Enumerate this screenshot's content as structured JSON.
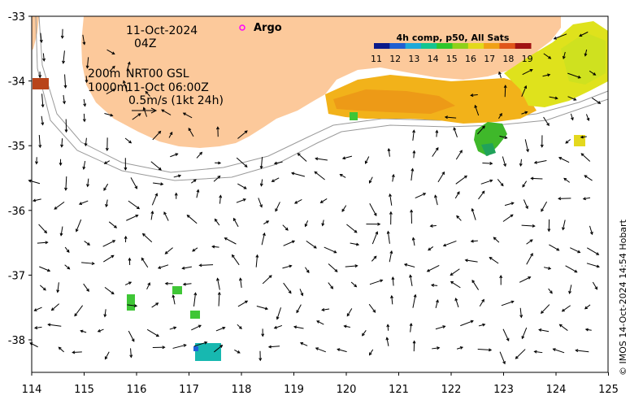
{
  "map": {
    "date_label": "11-Oct-2024",
    "time_label": "04Z",
    "legend_marker_label": "Argo",
    "current_info": {
      "line1_depth": "200m",
      "line1_text": "NRT00 GSL",
      "line2_depth": "1000m",
      "line2_text": "11-Oct 06:00Z",
      "scale_text": "0.5m/s (1kt 24h)"
    },
    "colorbar": {
      "title": "4h comp, p50, All Sats",
      "ticks": [
        "11",
        "12",
        "13",
        "14",
        "15",
        "16",
        "17",
        "18",
        "19"
      ],
      "colors": [
        "#0b1a8a",
        "#1f5fd1",
        "#1fa9d8",
        "#14c58f",
        "#2fc62a",
        "#8fd11a",
        "#e3d91b",
        "#f0a116",
        "#e0561a",
        "#a11212"
      ]
    },
    "x_axis": {
      "ticks": [
        "114",
        "115",
        "116",
        "117",
        "118",
        "119",
        "120",
        "121",
        "122",
        "123",
        "124",
        "125"
      ]
    },
    "y_axis": {
      "ticks": [
        "-33",
        "-34",
        "-35",
        "-36",
        "-37",
        "-38"
      ]
    },
    "credit": "© IMOS 14-Oct-2024 14:54 Hobart",
    "colors": {
      "land": "#fcc99b",
      "frame": "#000000",
      "argo": "#ff00ff"
    }
  }
}
